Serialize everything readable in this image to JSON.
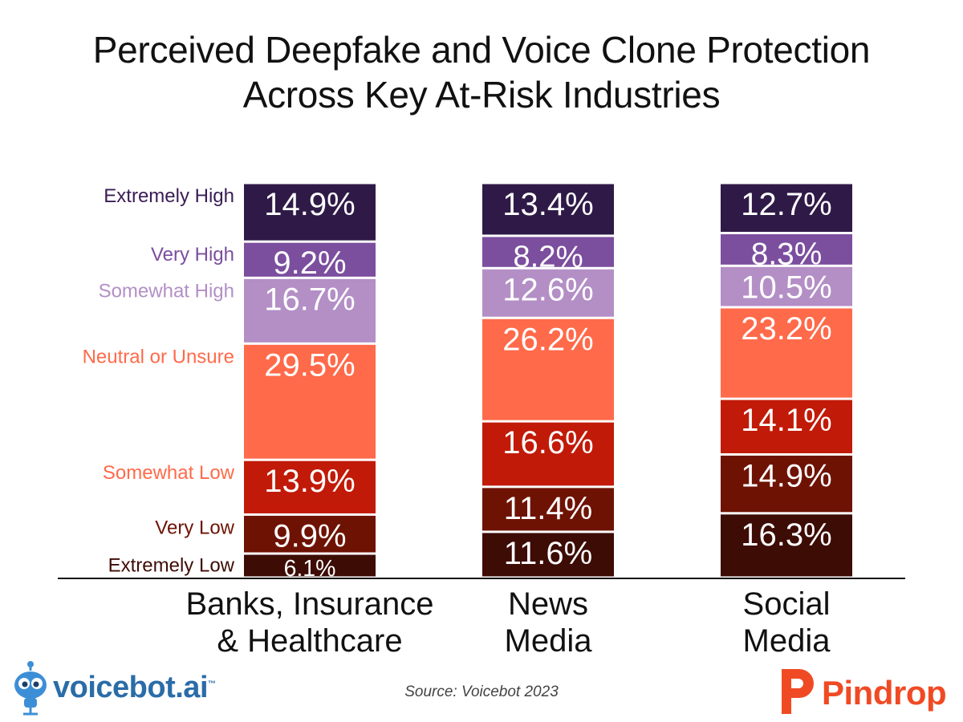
{
  "title": {
    "line1": "Perceived Deepfake and Voice Clone Protection",
    "line2": "Across Key At-Risk Industries"
  },
  "source": "Source: Voicebot 2023",
  "logos": {
    "voicebot": {
      "text": "voicebot.ai",
      "tm": "™",
      "color": "#2a6ca8"
    },
    "pindrop": {
      "text": "Pindrop",
      "color": "#f04a24"
    }
  },
  "chart_data": {
    "type": "bar",
    "stacked": true,
    "orientation": "vertical",
    "categories": [
      "Banks, Insurance\n& Healthcare",
      "News\nMedia",
      "Social\nMedia"
    ],
    "series": [
      {
        "name": "Extremely Low",
        "color": "#3d0c05",
        "values": [
          6.1,
          11.6,
          16.3
        ]
      },
      {
        "name": "Very Low",
        "color": "#6e1304",
        "values": [
          9.9,
          11.4,
          14.9
        ]
      },
      {
        "name": "Somewhat Low",
        "color": "#c21a08",
        "values": [
          13.9,
          16.6,
          14.1
        ]
      },
      {
        "name": "Neutral or Unsure",
        "color": "#ff6a4a",
        "values": [
          29.5,
          26.2,
          23.2
        ]
      },
      {
        "name": "Somewhat High",
        "color": "#b38fc6",
        "values": [
          16.7,
          12.6,
          10.5
        ]
      },
      {
        "name": "Very High",
        "color": "#7b4e9e",
        "values": [
          9.2,
          8.2,
          8.3
        ]
      },
      {
        "name": "Extremely High",
        "color": "#2f1a47",
        "values": [
          14.9,
          13.4,
          12.7
        ]
      }
    ],
    "label_colors": [
      "#3a1c55",
      "#7b4e9e",
      "#b38fc6",
      "#ff6a4a",
      "#ff6a4a",
      "#6e1304",
      "#3d0c05"
    ],
    "value_suffix": "%",
    "ylim": [
      0,
      100
    ],
    "legend_placement": "left of first bar"
  }
}
